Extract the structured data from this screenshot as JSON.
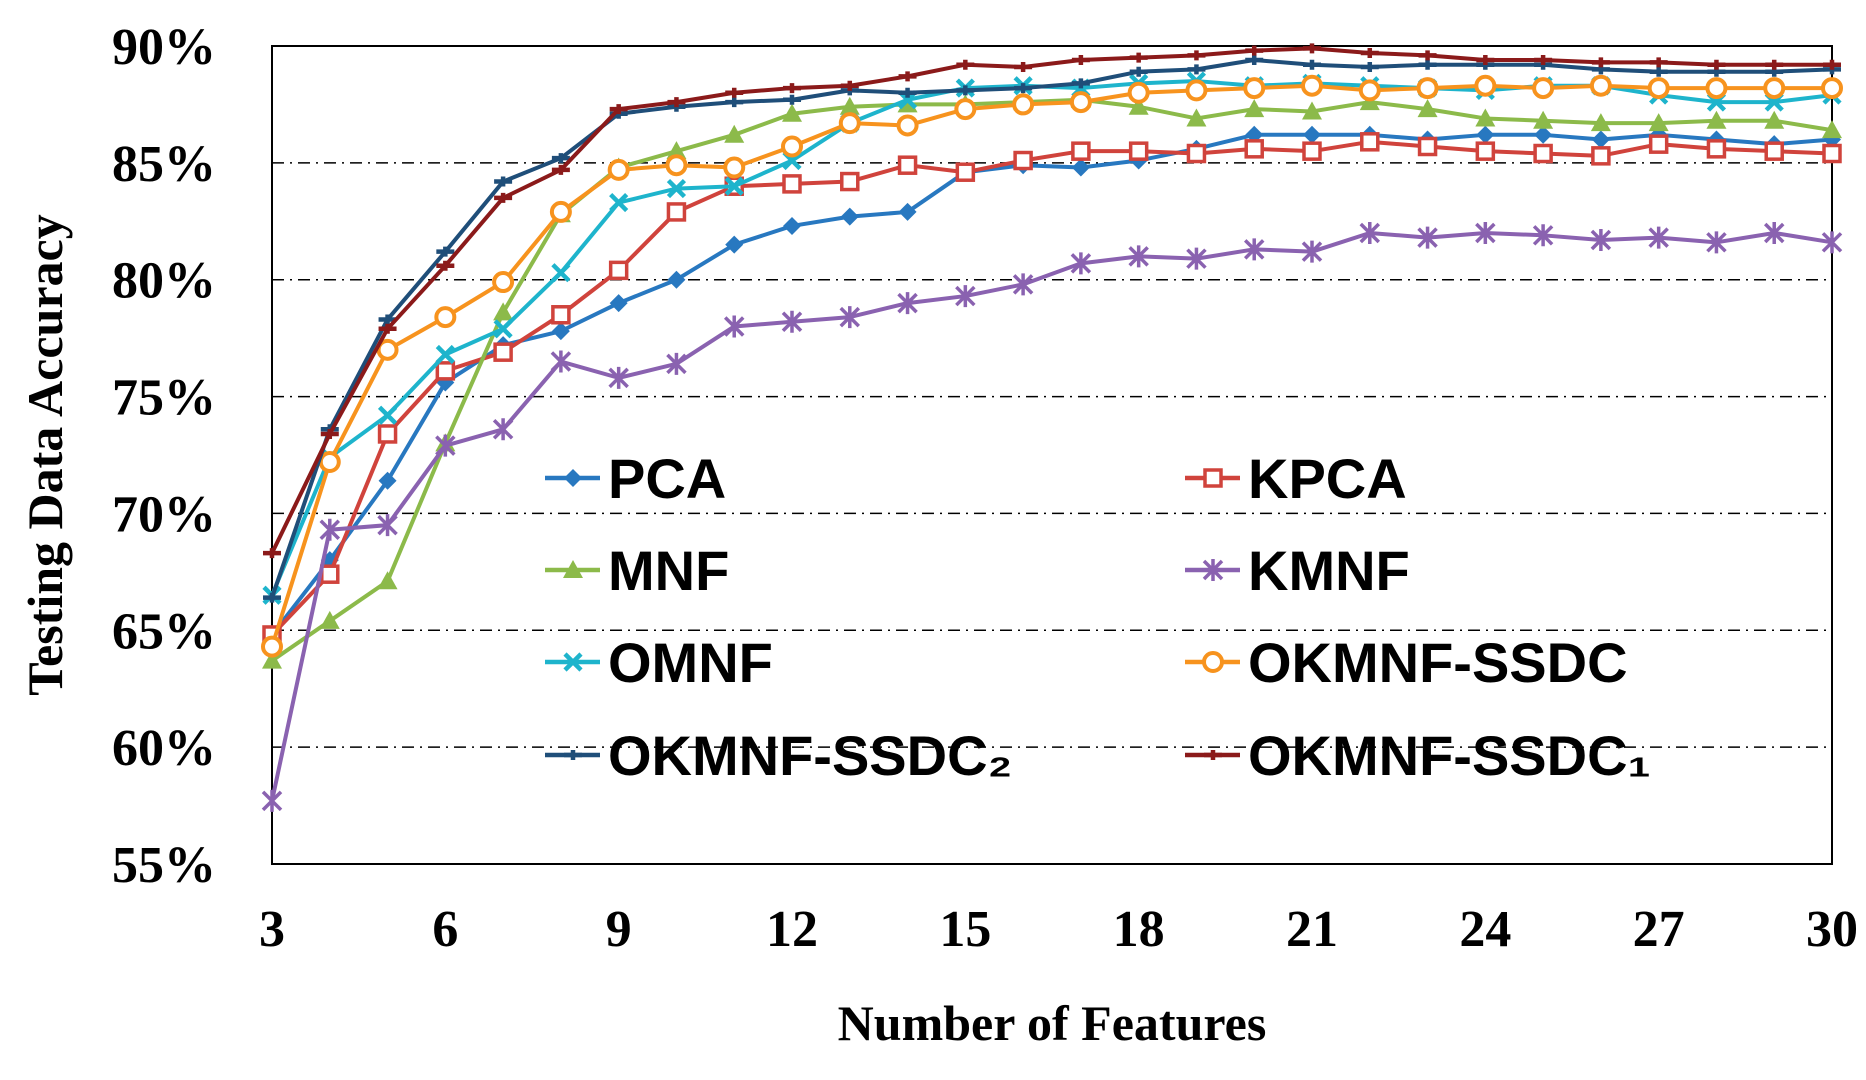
{
  "chart_data": {
    "type": "line",
    "title": "",
    "xlabel": "Number of Features",
    "ylabel": "Testing Data Accuracy",
    "x": [
      3,
      4,
      5,
      6,
      7,
      8,
      9,
      10,
      11,
      12,
      13,
      14,
      15,
      16,
      17,
      18,
      19,
      20,
      21,
      22,
      23,
      24,
      25,
      26,
      27,
      28,
      29,
      30
    ],
    "xlim": [
      3,
      30
    ],
    "ylim": [
      55,
      90
    ],
    "x_ticks": [
      3,
      6,
      9,
      12,
      15,
      18,
      21,
      24,
      27,
      30
    ],
    "x_tick_labels": [
      "3",
      "6",
      "9",
      "12",
      "15",
      "18",
      "21",
      "24",
      "27",
      "30"
    ],
    "y_ticks": [
      55,
      60,
      65,
      70,
      75,
      80,
      85,
      90
    ],
    "y_tick_labels": [
      "55%",
      "60%",
      "65%",
      "70%",
      "75%",
      "80%",
      "85%",
      "90%"
    ],
    "grid": "horizontal dash-dot",
    "legend_position": "center",
    "series": [
      {
        "name": "PCA",
        "color": "#2878c0",
        "marker": "diamond",
        "values": [
          64.8,
          68.0,
          71.4,
          75.6,
          77.2,
          77.8,
          79.0,
          80.0,
          81.5,
          82.3,
          82.7,
          82.9,
          84.6,
          84.9,
          84.8,
          85.1,
          85.6,
          86.2,
          86.2,
          86.2,
          86.0,
          86.2,
          86.2,
          86.0,
          86.2,
          86.0,
          85.8,
          86.0
        ]
      },
      {
        "name": "KPCA",
        "color": "#d0433c",
        "marker": "square",
        "values": [
          64.8,
          67.4,
          73.4,
          76.1,
          76.9,
          78.5,
          80.4,
          82.9,
          84.0,
          84.1,
          84.2,
          84.9,
          84.6,
          85.1,
          85.5,
          85.5,
          85.4,
          85.6,
          85.5,
          85.9,
          85.7,
          85.5,
          85.4,
          85.3,
          85.8,
          85.6,
          85.5,
          85.4
        ]
      },
      {
        "name": "MNF",
        "color": "#8cba4a",
        "marker": "triangle",
        "values": [
          63.7,
          65.4,
          67.1,
          73.0,
          78.6,
          82.8,
          84.8,
          85.5,
          86.2,
          87.1,
          87.4,
          87.5,
          87.5,
          87.6,
          87.7,
          87.4,
          86.9,
          87.3,
          87.2,
          87.6,
          87.3,
          86.9,
          86.8,
          86.7,
          86.7,
          86.8,
          86.8,
          86.4
        ]
      },
      {
        "name": "KMNF",
        "color": "#8a62b0",
        "marker": "star",
        "values": [
          57.7,
          69.3,
          69.5,
          72.9,
          73.6,
          76.5,
          75.8,
          76.4,
          78.0,
          78.2,
          78.4,
          79.0,
          79.3,
          79.8,
          80.7,
          81.0,
          80.9,
          81.3,
          81.2,
          82.0,
          81.8,
          82.0,
          81.9,
          81.7,
          81.8,
          81.6,
          82.0,
          81.6
        ]
      },
      {
        "name": "OMNF",
        "color": "#1eb4cc",
        "marker": "asterisk",
        "values": [
          66.5,
          72.4,
          74.2,
          76.8,
          77.9,
          80.3,
          83.3,
          83.9,
          84.0,
          85.1,
          86.7,
          87.7,
          88.2,
          88.3,
          88.2,
          88.4,
          88.5,
          88.3,
          88.4,
          88.3,
          88.2,
          88.1,
          88.3,
          88.3,
          87.9,
          87.6,
          87.6,
          87.9
        ]
      },
      {
        "name": "OKMNF-SSDC",
        "color": "#f7931e",
        "marker": "circle",
        "values": [
          64.3,
          72.2,
          77.0,
          78.4,
          79.9,
          82.9,
          84.7,
          84.9,
          84.8,
          85.7,
          86.7,
          86.6,
          87.3,
          87.5,
          87.6,
          88.0,
          88.1,
          88.2,
          88.3,
          88.1,
          88.2,
          88.3,
          88.2,
          88.3,
          88.2,
          88.2,
          88.2,
          88.2
        ]
      },
      {
        "name": "OKMNF-SSDC₂",
        "color": "#1f4e79",
        "marker": "dash",
        "values": [
          66.4,
          73.6,
          78.3,
          81.2,
          84.2,
          85.2,
          87.1,
          87.4,
          87.6,
          87.7,
          88.1,
          88.0,
          88.1,
          88.2,
          88.4,
          88.9,
          89.0,
          89.4,
          89.2,
          89.1,
          89.2,
          89.2,
          89.2,
          89.0,
          88.9,
          88.9,
          88.9,
          89.0
        ]
      },
      {
        "name": "OKMNF-SSDC₁",
        "color": "#8b1a1a",
        "marker": "dash",
        "values": [
          68.3,
          73.4,
          77.9,
          80.6,
          83.5,
          84.7,
          87.3,
          87.6,
          88.0,
          88.2,
          88.3,
          88.7,
          89.2,
          89.1,
          89.4,
          89.5,
          89.6,
          89.8,
          89.9,
          89.7,
          89.6,
          89.4,
          89.4,
          89.3,
          89.3,
          89.2,
          89.2,
          89.2
        ]
      }
    ]
  }
}
